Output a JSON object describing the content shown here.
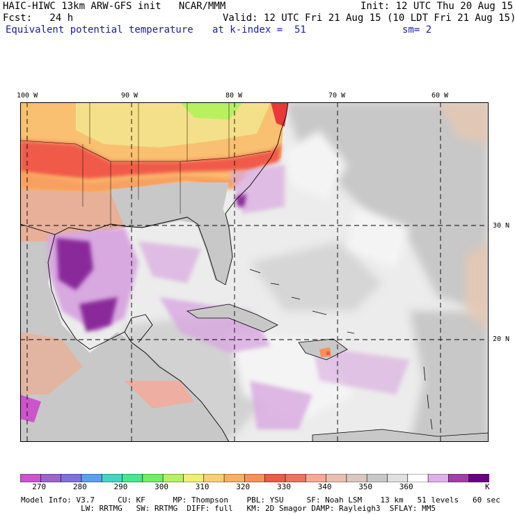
{
  "header": {
    "line1_left": "HAIC-HIWC 13km ARW-GFS init   NCAR/MMM",
    "line1_right": "Init: 12 UTC Thu 20 Aug 15",
    "line2_left": "Fcst:   24 h",
    "line2_right": "Valid: 12 UTC Fri 21 Aug 15 (10 LDT Fri 21 Aug 15)",
    "line3_left": "Equivalent potential temperature",
    "line3_mid": "at k-index =  51",
    "line3_right": "sm= 2"
  },
  "map": {
    "lon_labels": [
      "100 W",
      "90 W",
      "80 W",
      "70 W",
      "60 W"
    ],
    "lat_labels": [
      "30 N",
      "20 N"
    ],
    "colors": {
      "land_hot": "#f4e08a",
      "ocean_gray": "#c8c8c8",
      "ocean_light": "#ececec",
      "purple": "#d8a8e0",
      "dark_purple": "#8a2a9a",
      "red": "#f05050",
      "orange": "#f8a060"
    }
  },
  "colorbar": {
    "colors": [
      "#cc55cc",
      "#9a66cc",
      "#8070e0",
      "#5aa0f0",
      "#40d8c0",
      "#44e890",
      "#70f060",
      "#b8f060",
      "#f0f070",
      "#f8d070",
      "#f8b060",
      "#f89058",
      "#f05a48",
      "#f07060",
      "#f8a898",
      "#e8c0b0",
      "#d8c8c0",
      "#c8c8c8",
      "#e0e0e0",
      "#ffffff",
      "#e0b0e8",
      "#a040a8",
      "#6a0080"
    ],
    "labels": [
      "270",
      "280",
      "290",
      "300",
      "310",
      "320",
      "330",
      "340",
      "350",
      "360"
    ],
    "unit": "K"
  },
  "footer": {
    "line1": "Model Info: V3.7     CU: KF      MP: Thompson    PBL: YSU     SF: Noah LSM    13 km   51 levels   60 sec",
    "line2": "             LW: RRTMG   SW: RRTMG  DIFF: full   KM: 2D Smagor DAMP: Rayleigh3  SFLAY: MM5"
  }
}
